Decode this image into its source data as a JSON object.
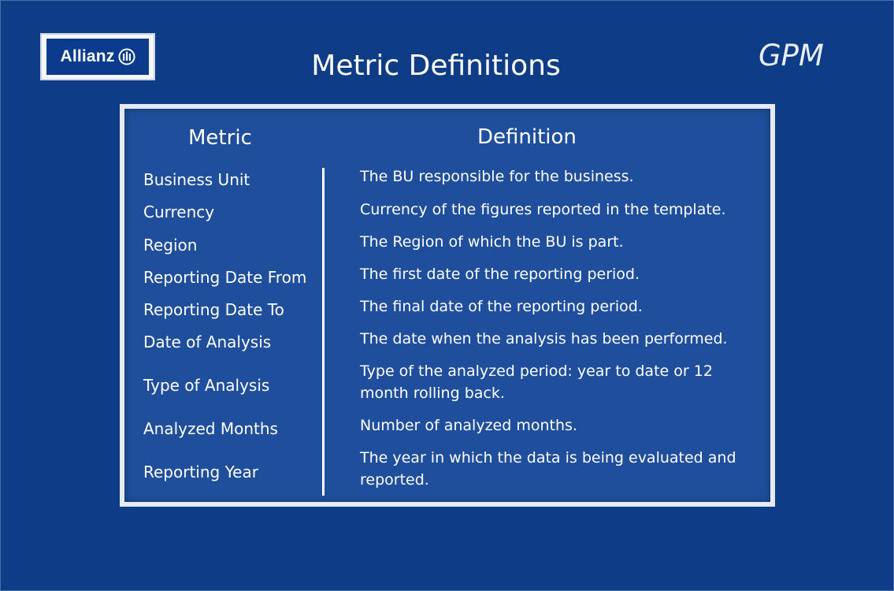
{
  "logo": {
    "text": "Allianz"
  },
  "title": "Metric Definitions",
  "brand": "GPM",
  "table": {
    "metric_header": "Metric",
    "definition_header": "Definition",
    "rows": [
      {
        "metric": "Business Unit",
        "definition": "The BU responsible for the business."
      },
      {
        "metric": "Currency",
        "definition": "Currency of the figures reported in the template."
      },
      {
        "metric": "Region",
        "definition": "The Region of which the BU is part."
      },
      {
        "metric": "Reporting Date From",
        "definition": "The first date of the reporting period."
      },
      {
        "metric": "Reporting Date To",
        "definition": "The final date of the reporting period."
      },
      {
        "metric": "Date of Analysis",
        "definition": "The date when the analysis has been performed."
      },
      {
        "metric": "Type of Analysis",
        "definition": "Type of the analyzed period: year to date or 12 month rolling back."
      },
      {
        "metric": "Analyzed Months",
        "definition": "Number of analyzed months."
      },
      {
        "metric": "Reporting Year",
        "definition": "The year in which the data is being evaluated and reported."
      }
    ]
  }
}
